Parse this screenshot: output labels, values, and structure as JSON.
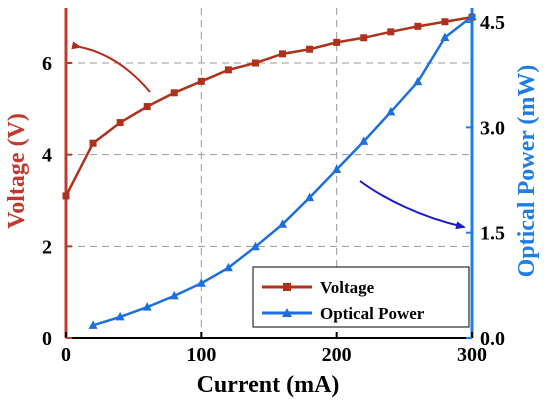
{
  "colors": {
    "voltage": "#b0311b",
    "optical_power": "#1c6fdd",
    "left_axis": "#c0392b",
    "right_axis": "#1f7de6",
    "arrow_left": "#b52a1a",
    "arrow_right": "#1a1ac8",
    "grid": "#9a9a9a",
    "text": "#000000"
  },
  "chart_data": {
    "type": "line",
    "xlabel": "Current (mA)",
    "ylabel_left": "Voltage (V)",
    "ylabel_right": "Optical Power (mW)",
    "xlim": [
      0,
      300
    ],
    "ylim_left": [
      0,
      7.2
    ],
    "ylim_right": [
      0,
      4.7
    ],
    "x_ticks": [
      "0",
      "100",
      "200",
      "300"
    ],
    "y_left_ticks": [
      "0",
      "2",
      "4",
      "6"
    ],
    "y_right_ticks": [
      "0.0",
      "1.5",
      "3.0",
      "4.5"
    ],
    "grid": true,
    "legend_position": "bottom-right",
    "series": [
      {
        "name": "Voltage",
        "axis": "left",
        "marker": "square",
        "x": [
          0,
          20,
          40,
          60,
          80,
          100,
          120,
          140,
          160,
          180,
          200,
          220,
          240,
          260,
          280,
          300
        ],
        "values": [
          3.1,
          4.25,
          4.7,
          5.05,
          5.35,
          5.6,
          5.85,
          6.0,
          6.2,
          6.3,
          6.45,
          6.55,
          6.68,
          6.8,
          6.9,
          7.0
        ]
      },
      {
        "name": "Optical Power",
        "axis": "right",
        "marker": "triangle",
        "x": [
          20,
          40,
          60,
          80,
          100,
          120,
          140,
          160,
          180,
          200,
          220,
          240,
          260,
          280,
          300
        ],
        "values": [
          0.18,
          0.3,
          0.44,
          0.6,
          0.78,
          1.0,
          1.3,
          1.62,
          2.0,
          2.4,
          2.8,
          3.22,
          3.65,
          4.28,
          4.58
        ]
      }
    ]
  }
}
